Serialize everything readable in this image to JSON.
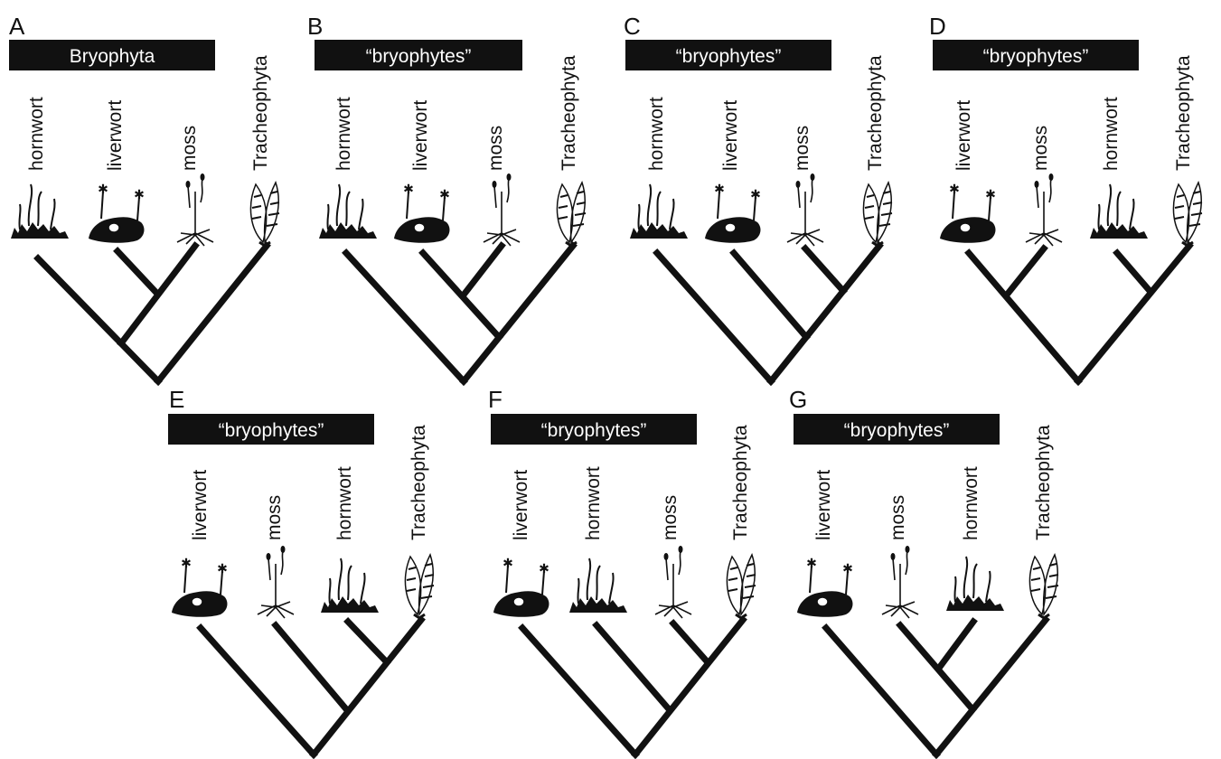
{
  "figure": {
    "panels": [
      {
        "letter": "A",
        "group_label": "Bryophyta",
        "taxa": [
          {
            "label": "hornwort",
            "organism": "hornwort-icon"
          },
          {
            "label": "liverwort",
            "organism": "liverwort-icon"
          },
          {
            "label": "moss",
            "organism": "moss-icon"
          },
          {
            "label": "Tracheophyta",
            "organism": "tracheophyte-icon"
          }
        ],
        "topology": "(((hornwort,(liverwort,moss)),Tracheophyta)"
      },
      {
        "letter": "B",
        "group_label": "“bryophytes”",
        "taxa": [
          {
            "label": "hornwort",
            "organism": "hornwort-icon"
          },
          {
            "label": "liverwort",
            "organism": "liverwort-icon"
          },
          {
            "label": "moss",
            "organism": "moss-icon"
          },
          {
            "label": "Tracheophyta",
            "organism": "tracheophyte-icon"
          }
        ],
        "topology": "(hornwort,((liverwort,moss),Tracheophyta))"
      },
      {
        "letter": "C",
        "group_label": "“bryophytes”",
        "taxa": [
          {
            "label": "hornwort",
            "organism": "hornwort-icon"
          },
          {
            "label": "liverwort",
            "organism": "liverwort-icon"
          },
          {
            "label": "moss",
            "organism": "moss-icon"
          },
          {
            "label": "Tracheophyta",
            "organism": "tracheophyte-icon"
          }
        ],
        "topology": "(hornwort,(liverwort,(moss,Tracheophyta)))"
      },
      {
        "letter": "D",
        "group_label": "“bryophytes”",
        "taxa": [
          {
            "label": "liverwort",
            "organism": "liverwort-icon"
          },
          {
            "label": "moss",
            "organism": "moss-icon"
          },
          {
            "label": "hornwort",
            "organism": "hornwort-icon"
          },
          {
            "label": "Tracheophyta",
            "organism": "tracheophyte-icon"
          }
        ],
        "topology": "((liverwort,moss),(hornwort,Tracheophyta))"
      },
      {
        "letter": "E",
        "group_label": "“bryophytes”",
        "taxa": [
          {
            "label": "liverwort",
            "organism": "liverwort-icon"
          },
          {
            "label": "moss",
            "organism": "moss-icon"
          },
          {
            "label": "hornwort",
            "organism": "hornwort-icon"
          },
          {
            "label": "Tracheophyta",
            "organism": "tracheophyte-icon"
          }
        ],
        "topology": "(liverwort,(moss,(hornwort,Tracheophyta)))"
      },
      {
        "letter": "F",
        "group_label": "“bryophytes”",
        "taxa": [
          {
            "label": "liverwort",
            "organism": "liverwort-icon"
          },
          {
            "label": "hornwort",
            "organism": "hornwort-icon"
          },
          {
            "label": "moss",
            "organism": "moss-icon"
          },
          {
            "label": "Tracheophyta",
            "organism": "tracheophyte-icon"
          }
        ],
        "topology": "(liverwort,(hornwort,(moss,Tracheophyta)))"
      },
      {
        "letter": "G",
        "group_label": "“bryophytes”",
        "taxa": [
          {
            "label": "liverwort",
            "organism": "liverwort-icon"
          },
          {
            "label": "moss",
            "organism": "moss-icon"
          },
          {
            "label": "hornwort",
            "organism": "hornwort-icon"
          },
          {
            "label": "Tracheophyta",
            "organism": "tracheophyte-icon"
          }
        ],
        "topology": "(liverwort,((moss,hornwort),Tracheophyta))"
      }
    ]
  }
}
